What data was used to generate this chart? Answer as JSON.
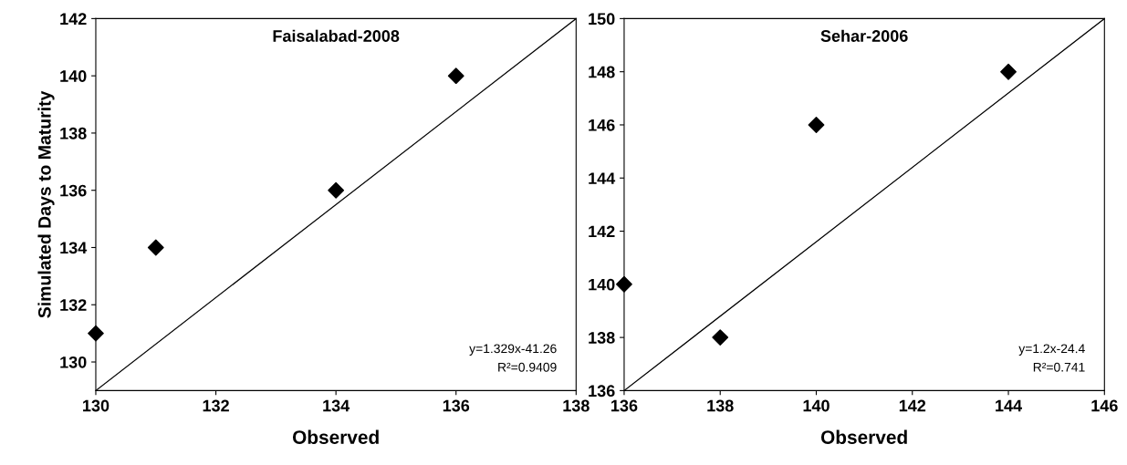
{
  "chart_data": [
    {
      "type": "scatter",
      "title": "Faisalabad-2008",
      "xlabel": "Observed",
      "ylabel": "Simulated Days to Maturity",
      "xlim": [
        130,
        138
      ],
      "ylim": [
        129,
        142
      ],
      "xticks": [
        130,
        132,
        134,
        136,
        138
      ],
      "yticks": [
        130,
        132,
        134,
        136,
        138,
        140,
        142
      ],
      "grid": false,
      "marker": "diamond",
      "series": [
        {
          "color": "#000000",
          "x": [
            130,
            131,
            134,
            136
          ],
          "values": [
            131,
            134,
            136,
            140
          ]
        },
        {
          "type": "line",
          "marker": "none",
          "color": "#000000",
          "x": [
            130,
            138
          ],
          "values": [
            129,
            142
          ]
        }
      ],
      "annotations": [
        "y=1.329x-41.26",
        "R²=0.9409"
      ]
    },
    {
      "type": "scatter",
      "title": "Sehar-2006",
      "xlabel": "Observed",
      "xlim": [
        136,
        146
      ],
      "ylim": [
        136,
        150
      ],
      "xticks": [
        136,
        138,
        140,
        142,
        144,
        146
      ],
      "yticks": [
        136,
        138,
        140,
        142,
        144,
        146,
        148,
        150
      ],
      "grid": false,
      "marker": "diamond",
      "series": [
        {
          "color": "#000000",
          "x": [
            136,
            138,
            140,
            144
          ],
          "values": [
            140,
            138,
            146,
            148
          ]
        },
        {
          "type": "line",
          "marker": "none",
          "color": "#000000",
          "x": [
            136,
            146
          ],
          "values": [
            136,
            150
          ]
        }
      ],
      "annotations": [
        "y=1.2x-24.4",
        "R²=0.741"
      ]
    }
  ]
}
